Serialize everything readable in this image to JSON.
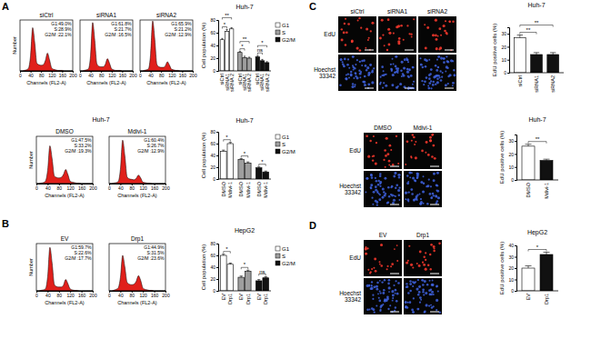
{
  "panel_labels": [
    "A",
    "B",
    "C",
    "D"
  ],
  "chart_data": [
    {
      "type": "area",
      "title": "siCtrl",
      "color": "#e0201b",
      "x_label": "Channels (FL2-A)",
      "y_label": "Number",
      "tick_labels": "x",
      "x": [
        0,
        8,
        16,
        24,
        32,
        40,
        48,
        56,
        64,
        72,
        80,
        88,
        96,
        104,
        112,
        120,
        128,
        136,
        144,
        152,
        160,
        168,
        176,
        184,
        192,
        200
      ],
      "values": [
        0,
        0,
        1,
        2,
        5,
        30,
        85,
        55,
        15,
        12,
        11,
        12,
        20,
        35,
        22,
        6,
        3,
        2,
        1,
        1,
        1,
        0,
        0,
        0,
        0,
        0
      ],
      "xlim": [
        0,
        200
      ],
      "xticks": [
        0,
        40,
        80,
        120,
        160,
        200
      ],
      "ylim": [
        0,
        100
      ],
      "annotations": [
        "G1:49.0%",
        "S:28.9%",
        "G2/M :22.1%"
      ]
    },
    {
      "type": "area",
      "title": "siRNA1",
      "color": "#e0201b",
      "x_label": "Channels (FL2-A)",
      "tick_labels": "x",
      "x": [
        0,
        8,
        16,
        24,
        32,
        40,
        48,
        56,
        64,
        72,
        80,
        88,
        96,
        104,
        112,
        120,
        128,
        136,
        144,
        152,
        160,
        168,
        176,
        184,
        192,
        200
      ],
      "values": [
        0,
        0,
        1,
        2,
        4,
        30,
        95,
        60,
        14,
        9,
        8,
        8,
        13,
        24,
        15,
        4,
        2,
        1,
        1,
        1,
        0,
        0,
        0,
        0,
        0,
        0
      ],
      "xlim": [
        0,
        200
      ],
      "xticks": [
        0,
        40,
        80,
        120,
        160,
        200
      ],
      "ylim": [
        0,
        100
      ],
      "annotations": [
        "G1:61.8%",
        "S:21.7%",
        "G2/M :16.5%"
      ]
    },
    {
      "type": "area",
      "title": "siRNA2",
      "color": "#e0201b",
      "x_label": "Channels (FL2-A)",
      "tick_labels": "x",
      "x": [
        0,
        8,
        16,
        24,
        32,
        40,
        48,
        56,
        64,
        72,
        80,
        88,
        96,
        104,
        112,
        120,
        128,
        136,
        144,
        152,
        160,
        168,
        176,
        184,
        192,
        200
      ],
      "values": [
        0,
        0,
        1,
        2,
        4,
        32,
        98,
        62,
        13,
        8,
        7,
        7,
        10,
        18,
        11,
        3,
        2,
        1,
        1,
        0,
        0,
        0,
        0,
        0,
        0,
        0
      ],
      "xlim": [
        0,
        200
      ],
      "xticks": [
        0,
        40,
        80,
        120,
        160,
        200
      ],
      "ylim": [
        0,
        100
      ],
      "annotations": [
        "G1:65.9%",
        "S:21.2%",
        "G2/M :12.9%"
      ]
    },
    {
      "type": "bar",
      "title": "Huh-7",
      "y_label": "Cell population (%)",
      "legend": "right",
      "categories": [
        "siCtrl",
        "siRNA1",
        "siRNA 2"
      ],
      "series": [
        {
          "name": "G1",
          "color": "#ffffff",
          "values": [
            49,
            62,
            66
          ],
          "errors": [
            2,
            3,
            2
          ]
        },
        {
          "name": "S",
          "color": "#9e9e9e",
          "values": [
            29,
            21,
            20
          ],
          "errors": [
            1.5,
            2,
            1.5
          ]
        },
        {
          "name": "G2/M",
          "color": "#111111",
          "values": [
            22,
            16,
            13
          ],
          "errors": [
            2,
            2,
            1.5
          ]
        }
      ],
      "ylim": [
        0,
        80
      ],
      "yticks": [
        0,
        20,
        40,
        60,
        80
      ],
      "annotations": [
        {
          "text": "*",
          "group": "G1",
          "between": [
            "siCtrl",
            "siRNA1"
          ]
        },
        {
          "text": "**",
          "group": "G1",
          "between": [
            "siCtrl",
            "siRNA 2"
          ]
        },
        {
          "text": "*",
          "group": "S",
          "between": [
            "siCtrl",
            "siRNA1"
          ]
        },
        {
          "text": "**",
          "group": "S",
          "between": [
            "siCtrl",
            "siRNA 2"
          ]
        },
        {
          "text": "ns",
          "group": "G2/M",
          "between": [
            "siCtrl",
            "siRNA1"
          ]
        },
        {
          "text": "*",
          "group": "G2/M",
          "between": [
            "siCtrl",
            "siRNA 2"
          ]
        }
      ]
    },
    {
      "type": "area",
      "title": "DMSO",
      "subtitle": "Huh-7",
      "color": "#e0201b",
      "x_label": "Channels (FL2-A)",
      "y_label": "Number",
      "tick_labels": "x",
      "x": [
        0,
        8,
        16,
        24,
        32,
        40,
        48,
        56,
        64,
        72,
        80,
        88,
        96,
        104,
        112,
        120,
        128,
        136,
        144,
        152,
        160,
        168,
        176,
        184,
        192,
        200
      ],
      "values": [
        0,
        0,
        1,
        2,
        5,
        28,
        80,
        52,
        16,
        13,
        12,
        13,
        19,
        30,
        19,
        5,
        3,
        2,
        1,
        1,
        0,
        0,
        0,
        0,
        0,
        0
      ],
      "xlim": [
        0,
        200
      ],
      "xticks": [
        0,
        40,
        80,
        120,
        160,
        200
      ],
      "ylim": [
        0,
        100
      ],
      "annotations": [
        "G1:47.5%",
        "S:33.2%",
        "G2/M :19.3%"
      ]
    },
    {
      "type": "area",
      "title": "Mdivi-1",
      "color": "#e0201b",
      "x_label": "Channels (FL2-A)",
      "tick_labels": "x",
      "x": [
        0,
        8,
        16,
        24,
        32,
        40,
        48,
        56,
        64,
        72,
        80,
        88,
        96,
        104,
        112,
        120,
        128,
        136,
        144,
        152,
        160,
        168,
        176,
        184,
        192,
        200
      ],
      "values": [
        0,
        0,
        1,
        2,
        4,
        30,
        92,
        58,
        14,
        10,
        9,
        8,
        11,
        18,
        12,
        3,
        2,
        1,
        1,
        0,
        0,
        0,
        0,
        0,
        0,
        0
      ],
      "xlim": [
        0,
        200
      ],
      "xticks": [
        0,
        40,
        80,
        120,
        160,
        200
      ],
      "ylim": [
        0,
        100
      ],
      "annotations": [
        "G1:60.4%",
        "S:26.7%",
        "G2/M :12.9%"
      ]
    },
    {
      "type": "bar",
      "title": "Huh-7",
      "y_label": "Cell population (%)",
      "legend": "right",
      "categories": [
        "DMSO",
        "Mdivi-1"
      ],
      "series": [
        {
          "name": "G1",
          "color": "#ffffff",
          "values": [
            47,
            60
          ],
          "errors": [
            2,
            2
          ]
        },
        {
          "name": "S",
          "color": "#9e9e9e",
          "values": [
            33,
            27
          ],
          "errors": [
            1.5,
            2
          ]
        },
        {
          "name": "G2/M",
          "color": "#111111",
          "values": [
            19,
            12
          ],
          "errors": [
            1.5,
            1.5
          ]
        }
      ],
      "ylim": [
        0,
        80
      ],
      "yticks": [
        0,
        20,
        40,
        60,
        80
      ],
      "annotations": [
        {
          "text": "*",
          "group": "G1",
          "between": [
            "DMSO",
            "Mdivi-1"
          ]
        },
        {
          "text": "*",
          "group": "S",
          "between": [
            "DMSO",
            "Mdivi-1"
          ]
        },
        {
          "text": "*",
          "group": "G2/M",
          "between": [
            "DMSO",
            "Mdivi-1"
          ]
        }
      ]
    },
    {
      "type": "area",
      "title": "EV",
      "color": "#e0201b",
      "x_label": "Channels (FL2-A)",
      "y_label": "Number",
      "tick_labels": "x",
      "x": [
        0,
        8,
        16,
        24,
        32,
        40,
        48,
        56,
        64,
        72,
        80,
        88,
        96,
        104,
        112,
        120,
        128,
        136,
        144,
        152,
        160,
        168,
        176,
        184,
        192,
        200
      ],
      "values": [
        0,
        0,
        1,
        2,
        4,
        30,
        92,
        58,
        13,
        9,
        8,
        8,
        12,
        24,
        15,
        4,
        2,
        1,
        1,
        0,
        0,
        0,
        0,
        0,
        0,
        0
      ],
      "xlim": [
        0,
        200
      ],
      "xticks": [
        0,
        40,
        80,
        120,
        160,
        200
      ],
      "ylim": [
        0,
        100
      ],
      "annotations": [
        "G1:59.7%",
        "S:22.6%",
        "G2/M :17.7%"
      ]
    },
    {
      "type": "area",
      "title": "Drp1",
      "color": "#e0201b",
      "x_label": "Channels (FL2-A)",
      "tick_labels": "x",
      "x": [
        0,
        8,
        16,
        24,
        32,
        40,
        48,
        56,
        64,
        72,
        80,
        88,
        96,
        104,
        112,
        120,
        128,
        136,
        144,
        152,
        160,
        168,
        176,
        184,
        192,
        200
      ],
      "values": [
        0,
        0,
        1,
        3,
        6,
        28,
        75,
        50,
        18,
        14,
        13,
        14,
        20,
        32,
        22,
        6,
        3,
        2,
        1,
        1,
        0,
        0,
        0,
        0,
        0,
        0
      ],
      "xlim": [
        0,
        200
      ],
      "xticks": [
        0,
        40,
        80,
        120,
        160,
        200
      ],
      "ylim": [
        0,
        100
      ],
      "annotations": [
        "G1:44.9%",
        "S:31.5%",
        "G2/M :23.6%"
      ]
    },
    {
      "type": "bar",
      "title": "HepG2",
      "y_label": "Cell population (%)",
      "legend": "right",
      "categories": [
        "EV",
        "Drp1"
      ],
      "series": [
        {
          "name": "G1",
          "color": "#ffffff",
          "values": [
            60,
            45
          ],
          "errors": [
            2,
            2
          ]
        },
        {
          "name": "S",
          "color": "#9e9e9e",
          "values": [
            23,
            33
          ],
          "errors": [
            2,
            2
          ]
        },
        {
          "name": "G2/M",
          "color": "#111111",
          "values": [
            17,
            22
          ],
          "errors": [
            2,
            2
          ]
        }
      ],
      "ylim": [
        0,
        80
      ],
      "yticks": [
        0,
        20,
        40,
        60,
        80
      ],
      "annotations": [
        {
          "text": "*",
          "group": "G1",
          "between": [
            "EV",
            "Drp1"
          ]
        },
        {
          "text": "*",
          "group": "S",
          "between": [
            "EV",
            "Drp1"
          ]
        },
        {
          "text": "ns",
          "group": "G2/M",
          "between": [
            "EV",
            "Drp1"
          ]
        }
      ]
    },
    {
      "type": "image_grid",
      "columns": [
        "siCtrl",
        "siRNA1",
        "siRNA2"
      ],
      "rows": [
        "EdU",
        "Hoechst 33342"
      ]
    },
    {
      "type": "bar",
      "title": "Huh-7",
      "y_label": "EdU positive cells (%)",
      "categories": [
        "siCtrl",
        "siRNA1",
        "siRNA2"
      ],
      "values": [
        27,
        14,
        14
      ],
      "errors": [
        2,
        1.5,
        1.5
      ],
      "colors": [
        "#ffffff",
        "#111111",
        "#111111"
      ],
      "ylim": [
        0,
        35
      ],
      "yticks": [
        0,
        10,
        20,
        30
      ],
      "annotations": [
        {
          "text": "**",
          "between": [
            "siCtrl",
            "siRNA1"
          ]
        },
        {
          "text": "**",
          "between": [
            "siCtrl",
            "siRNA2"
          ]
        }
      ]
    },
    {
      "type": "image_grid",
      "columns": [
        "DMSO",
        "Mdivi-1"
      ],
      "rows": [
        "EdU",
        "Hoechst 33342"
      ]
    },
    {
      "type": "bar",
      "title": "Huh-7",
      "y_label": "EdU positive cells (%)",
      "categories": [
        "DMSO",
        "Mdivi-1"
      ],
      "values": [
        26,
        15
      ],
      "errors": [
        1.5,
        1
      ],
      "colors": [
        "#ffffff",
        "#111111"
      ],
      "ylim": [
        0,
        35
      ],
      "yticks": [
        0,
        10,
        20,
        30
      ],
      "annotations": [
        {
          "text": "**",
          "between": [
            "DMSO",
            "Mdivi-1"
          ]
        }
      ]
    },
    {
      "type": "image_grid",
      "columns": [
        "EV",
        "Drp1"
      ],
      "rows": [
        "EdU",
        "Hoechst 33342"
      ]
    },
    {
      "type": "bar",
      "title": "HepG2",
      "y_label": "EdU positive cells (%)",
      "categories": [
        "EV",
        "Drp1"
      ],
      "values": [
        20,
        32
      ],
      "errors": [
        2,
        2
      ],
      "colors": [
        "#ffffff",
        "#111111"
      ],
      "ylim": [
        0,
        40
      ],
      "yticks": [
        0,
        10,
        20,
        30,
        40
      ],
      "annotations": [
        {
          "text": "*",
          "between": [
            "EV",
            "Drp1"
          ]
        }
      ]
    }
  ]
}
